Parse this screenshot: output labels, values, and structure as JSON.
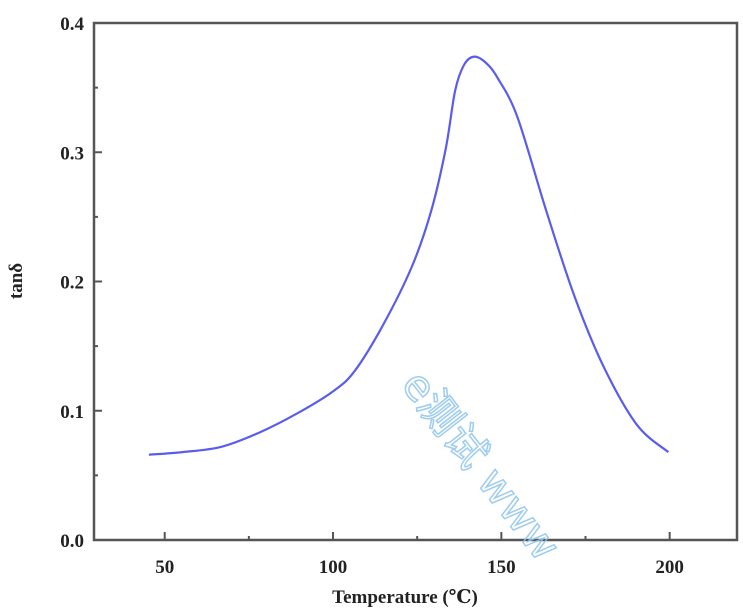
{
  "chart_data": {
    "type": "line",
    "title": "",
    "xlabel": "Temperature (℃)",
    "ylabel": "tanδ",
    "xlim": [
      29,
      220
    ],
    "ylim": [
      0,
      0.4
    ],
    "xticks": [
      50,
      100,
      150,
      200
    ],
    "xtick_labels": [
      "50",
      "100",
      "150",
      "200"
    ],
    "yticks": [
      0.0,
      0.1,
      0.2,
      0.3,
      0.4
    ],
    "ytick_labels": [
      "0.0",
      "0.1",
      "0.2",
      "0.3",
      "0.4"
    ],
    "x_minor_ticks": [
      75,
      125,
      175
    ],
    "y_minor_ticks": [
      0.05,
      0.15,
      0.25,
      0.35
    ],
    "grid": false,
    "legend": "none",
    "series": [
      {
        "color": "#5a5cf0",
        "x": [
          45.3,
          55.3,
          66.7,
          78,
          89.4,
          100,
          106.5,
          115,
          123.5,
          129.2,
          133.5,
          136.3,
          139,
          142,
          145.5,
          149,
          154.8,
          163.3,
          171.8,
          180.4,
          190.3,
          199.6
        ],
        "y": [
          0.066,
          0.068,
          0.072,
          0.083,
          0.098,
          0.115,
          0.131,
          0.167,
          0.212,
          0.255,
          0.303,
          0.348,
          0.368,
          0.374,
          0.369,
          0.357,
          0.327,
          0.255,
          0.188,
          0.134,
          0.089,
          0.068
        ]
      }
    ]
  },
  "watermark": "e测试 www"
}
